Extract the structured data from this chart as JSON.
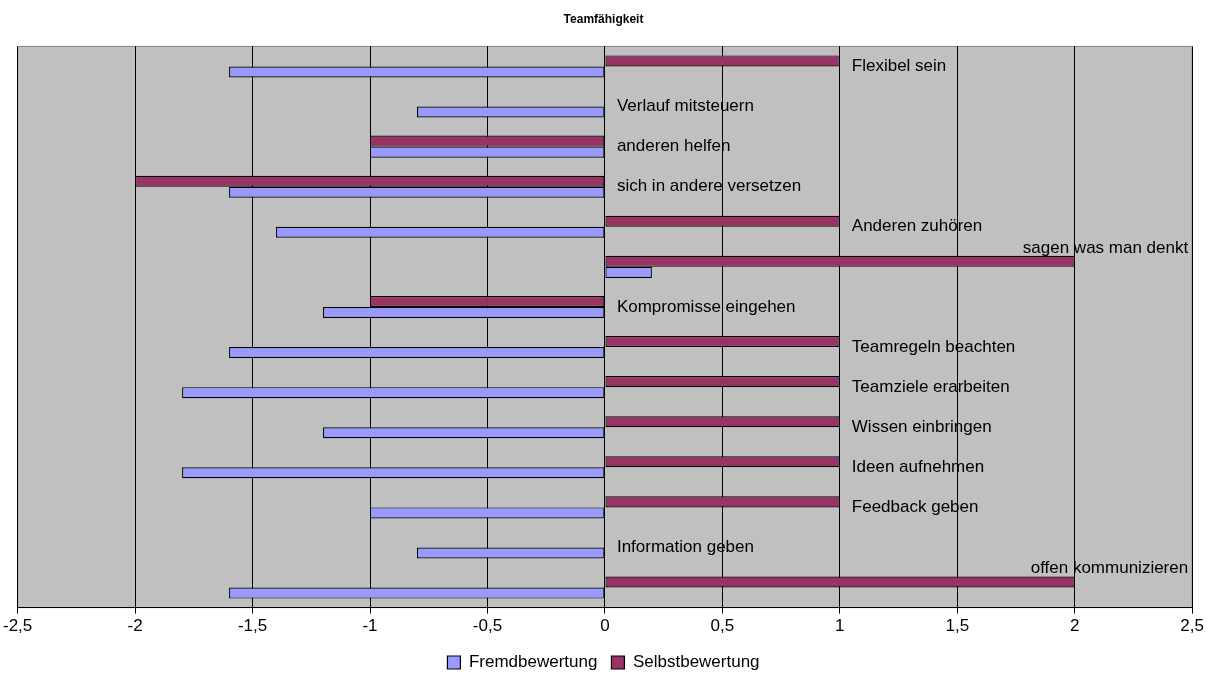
{
  "chart_data": {
    "type": "bar",
    "orientation": "horizontal",
    "title": "Teamfähigkeit",
    "categories": [
      "Flexibel sein",
      "Verlauf mitsteuern",
      "anderen helfen",
      "sich in andere versetzen",
      "Anderen zuhören",
      "sagen was man denkt",
      "Kompromisse eingehen",
      "Teamregeln beachten",
      "Teamziele erarbeiten",
      "Wissen einbringen",
      "Ideen aufnehmen",
      "Feedback geben",
      "Information geben",
      "offen kommunizieren"
    ],
    "series": [
      {
        "name": "Fremdbewertung",
        "color": "#9999ff",
        "values": [
          -1.6,
          -0.8,
          -1,
          -1.6,
          -1.4,
          0.2,
          -1.2,
          -1.6,
          -1.8,
          -1.2,
          -1.8,
          -1,
          -0.8,
          -1.6
        ]
      },
      {
        "name": "Selbstbewertung",
        "color": "#993366",
        "values": [
          1,
          0,
          -1,
          -2,
          1,
          2,
          -1,
          1,
          1,
          1,
          1,
          1,
          0,
          2
        ]
      }
    ],
    "xlim": [
      -2.5,
      2.5
    ],
    "xticks": [
      {
        "value": -2.5,
        "label": "-2,5"
      },
      -2,
      {
        "value": -1.5,
        "label": "-1,5"
      },
      -1,
      {
        "value": -0.5,
        "label": "-0,5"
      },
      0,
      {
        "value": 0.5,
        "label": "0,5"
      },
      1,
      {
        "value": 1.5,
        "label": "1,5"
      },
      2,
      {
        "value": 2.5,
        "label": "2,5"
      }
    ],
    "grid": "x",
    "legend": "bottom",
    "tick_labels": "x"
  }
}
